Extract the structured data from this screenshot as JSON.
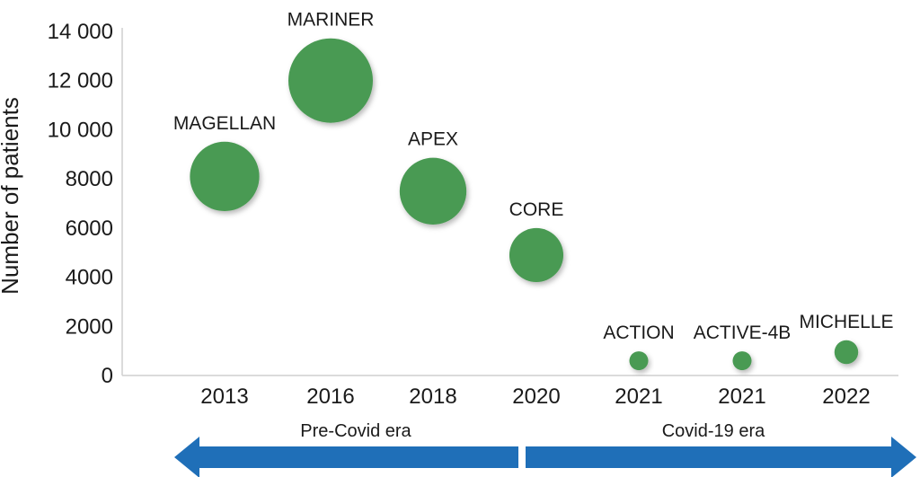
{
  "chart_data": {
    "type": "scatter",
    "title": "",
    "xlabel": "",
    "ylabel": "Number of patients",
    "ylim": [
      0,
      14000
    ],
    "y_ticks": [
      0,
      2000,
      4000,
      6000,
      8000,
      10000,
      12000,
      14000
    ],
    "y_tick_labels": [
      "0",
      "2000",
      "4000",
      "6000",
      "8000",
      "10 000",
      "12 000",
      "14 000"
    ],
    "categories": [
      "2013",
      "2016",
      "2018",
      "2020",
      "2021",
      "2021",
      "2022"
    ],
    "points": [
      {
        "label": "MAGELLAN",
        "year": "2013",
        "patients": 8100
      },
      {
        "label": "MARINER",
        "year": "2016",
        "patients": 12000
      },
      {
        "label": "APEX",
        "year": "2018",
        "patients": 7500
      },
      {
        "label": "CORE",
        "year": "2020",
        "patients": 4900
      },
      {
        "label": "ACTION",
        "year": "2021",
        "patients": 600
      },
      {
        "label": "ACTIVE-4B",
        "year": "2021",
        "patients": 600
      },
      {
        "label": "MICHELLE",
        "year": "2022",
        "patients": 950
      }
    ],
    "grid": false,
    "bubble_color": "#4a9a52",
    "eras": [
      {
        "label": "Pre-Covid era",
        "direction": "left"
      },
      {
        "label": "Covid-19 era",
        "direction": "right"
      }
    ],
    "arrow_color": "#1f6fb8"
  }
}
